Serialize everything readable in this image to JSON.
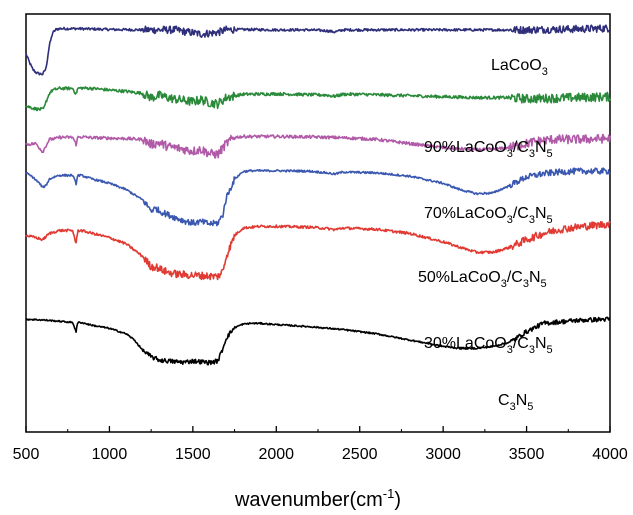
{
  "chart_data": {
    "type": "line",
    "title": "",
    "xlabel": {
      "main": "wavenumber(cm",
      "sup": "-1",
      "tail": ")"
    },
    "ylabel": "",
    "xlim": [
      500,
      4000
    ],
    "xticks": [
      500,
      1000,
      1500,
      2000,
      2500,
      3000,
      3500,
      4000
    ],
    "xtick_labels": [
      "500",
      "1000",
      "1500",
      "2000",
      "2500",
      "3000",
      "3500",
      "4000"
    ],
    "ylim": [
      0,
      1
    ],
    "grid": false,
    "legend": "none",
    "series": [
      {
        "label": [
          {
            "t": "LaCoO"
          },
          {
            "t": "3",
            "sub": true
          }
        ],
        "color": "#2e2e7a",
        "noise": 0.005,
        "x": [
          500,
          520,
          540,
          560,
          580,
          600,
          620,
          640,
          660,
          680,
          700,
          800,
          1000,
          1200,
          1300,
          1400,
          1450,
          1500,
          1550,
          1600,
          1650,
          1700,
          1800,
          2000,
          2200,
          2300,
          2350,
          2400,
          2600,
          3000,
          3200,
          3400,
          3500,
          3600,
          3800,
          4000
        ],
        "y": [
          0.905,
          0.885,
          0.868,
          0.86,
          0.857,
          0.856,
          0.87,
          0.925,
          0.955,
          0.963,
          0.965,
          0.965,
          0.963,
          0.962,
          0.962,
          0.962,
          0.958,
          0.955,
          0.952,
          0.954,
          0.956,
          0.962,
          0.963,
          0.962,
          0.962,
          0.96,
          0.957,
          0.962,
          0.962,
          0.962,
          0.962,
          0.962,
          0.962,
          0.963,
          0.964,
          0.966
        ]
      },
      {
        "label": [
          {
            "t": "90%LaCoO"
          },
          {
            "t": "3",
            "sub": true
          },
          {
            "t": "/C"
          },
          {
            "t": "3",
            "sub": true
          },
          {
            "t": "N"
          },
          {
            "t": "5",
            "sub": true
          }
        ],
        "color": "#2a8a3a",
        "noise": 0.006,
        "x": [
          500,
          540,
          560,
          580,
          600,
          610,
          620,
          640,
          660,
          680,
          700,
          780,
          800,
          810,
          830,
          900,
          1000,
          1100,
          1200,
          1250,
          1300,
          1350,
          1400,
          1500,
          1550,
          1600,
          1650,
          1700,
          1800,
          2000,
          2300,
          2350,
          2400,
          2500,
          3000,
          3200,
          3300,
          3400,
          3500,
          3600,
          3800,
          4000
        ],
        "y": [
          0.78,
          0.775,
          0.773,
          0.772,
          0.772,
          0.776,
          0.79,
          0.81,
          0.818,
          0.82,
          0.822,
          0.822,
          0.808,
          0.822,
          0.823,
          0.822,
          0.818,
          0.815,
          0.81,
          0.8,
          0.805,
          0.8,
          0.796,
          0.79,
          0.795,
          0.788,
          0.785,
          0.8,
          0.808,
          0.809,
          0.806,
          0.803,
          0.808,
          0.808,
          0.802,
          0.8,
          0.8,
          0.8,
          0.797,
          0.798,
          0.8,
          0.802
        ]
      },
      {
        "label": [
          {
            "t": "70%LaCoO"
          },
          {
            "t": "3",
            "sub": true
          },
          {
            "t": "/C"
          },
          {
            "t": "3",
            "sub": true
          },
          {
            "t": "N"
          },
          {
            "t": "5",
            "sub": true
          }
        ],
        "color": "#b05aa8",
        "noise": 0.006,
        "x": [
          500,
          560,
          600,
          620,
          640,
          680,
          700,
          780,
          800,
          810,
          830,
          900,
          1000,
          1100,
          1200,
          1250,
          1300,
          1350,
          1400,
          1450,
          1500,
          1550,
          1600,
          1650,
          1700,
          1750,
          1800,
          2000,
          2200,
          2400,
          2600,
          2800,
          3000,
          3200,
          3350,
          3450,
          3550,
          3650,
          3800,
          4000
        ],
        "y": [
          0.688,
          0.69,
          0.67,
          0.685,
          0.7,
          0.702,
          0.705,
          0.705,
          0.688,
          0.705,
          0.706,
          0.704,
          0.703,
          0.702,
          0.7,
          0.688,
          0.692,
          0.683,
          0.68,
          0.676,
          0.672,
          0.676,
          0.666,
          0.664,
          0.69,
          0.705,
          0.707,
          0.707,
          0.706,
          0.704,
          0.7,
          0.69,
          0.68,
          0.675,
          0.678,
          0.685,
          0.695,
          0.7,
          0.7,
          0.702
        ]
      },
      {
        "label": [
          {
            "t": "50%LaCoO"
          },
          {
            "t": "3",
            "sub": true
          },
          {
            "t": "/C"
          },
          {
            "t": "3",
            "sub": true
          },
          {
            "t": "N"
          },
          {
            "t": "5",
            "sub": true
          }
        ],
        "color": "#3a58b0",
        "noise": 0.004,
        "x": [
          500,
          540,
          580,
          600,
          620,
          640,
          680,
          700,
          780,
          800,
          810,
          830,
          900,
          1000,
          1100,
          1200,
          1250,
          1280,
          1300,
          1350,
          1400,
          1450,
          1500,
          1550,
          1600,
          1650,
          1680,
          1700,
          1750,
          1800,
          1850,
          1900,
          2000,
          2200,
          2300,
          2350,
          2400,
          2600,
          2800,
          3000,
          3100,
          3200,
          3300,
          3400,
          3500,
          3600,
          3700,
          3800,
          4000
        ],
        "y": [
          0.62,
          0.61,
          0.595,
          0.585,
          0.59,
          0.605,
          0.612,
          0.614,
          0.614,
          0.594,
          0.614,
          0.614,
          0.605,
          0.595,
          0.58,
          0.555,
          0.53,
          0.535,
          0.528,
          0.52,
          0.512,
          0.505,
          0.5,
          0.503,
          0.498,
          0.5,
          0.52,
          0.56,
          0.605,
          0.623,
          0.625,
          0.625,
          0.625,
          0.624,
          0.62,
          0.617,
          0.622,
          0.62,
          0.612,
          0.595,
          0.58,
          0.57,
          0.572,
          0.59,
          0.61,
          0.618,
          0.622,
          0.624,
          0.624
        ]
      },
      {
        "label": [
          {
            "t": "30%LaCoO"
          },
          {
            "t": "3",
            "sub": true
          },
          {
            "t": "/C"
          },
          {
            "t": "3",
            "sub": true
          },
          {
            "t": "N"
          },
          {
            "t": "5",
            "sub": true
          }
        ],
        "color": "#e03a32",
        "noise": 0.005,
        "x": [
          500,
          560,
          600,
          640,
          700,
          780,
          800,
          810,
          830,
          900,
          1000,
          1100,
          1200,
          1250,
          1280,
          1300,
          1350,
          1400,
          1450,
          1500,
          1550,
          1600,
          1650,
          1680,
          1700,
          1750,
          1800,
          1900,
          2000,
          2200,
          2300,
          2350,
          2400,
          2600,
          2800,
          3000,
          3100,
          3200,
          3300,
          3400,
          3500,
          3600,
          3700,
          3800,
          3900,
          4000
        ],
        "y": [
          0.47,
          0.465,
          0.46,
          0.475,
          0.482,
          0.482,
          0.45,
          0.482,
          0.482,
          0.475,
          0.465,
          0.45,
          0.42,
          0.395,
          0.395,
          0.39,
          0.382,
          0.378,
          0.376,
          0.375,
          0.374,
          0.373,
          0.372,
          0.385,
          0.42,
          0.47,
          0.488,
          0.492,
          0.492,
          0.49,
          0.487,
          0.484,
          0.488,
          0.485,
          0.475,
          0.455,
          0.442,
          0.43,
          0.43,
          0.442,
          0.46,
          0.475,
          0.485,
          0.49,
          0.494,
          0.498
        ]
      },
      {
        "label": [
          {
            "t": "C"
          },
          {
            "t": "3",
            "sub": true
          },
          {
            "t": "N"
          },
          {
            "t": "5",
            "sub": true
          }
        ],
        "color": "#000000",
        "noise": 0.003,
        "x": [
          500,
          600,
          700,
          780,
          800,
          810,
          830,
          900,
          1000,
          1100,
          1150,
          1200,
          1250,
          1300,
          1350,
          1400,
          1450,
          1500,
          1550,
          1600,
          1650,
          1680,
          1700,
          1750,
          1800,
          1850,
          1900,
          2000,
          2200,
          2400,
          2600,
          2800,
          3000,
          3100,
          3200,
          3300,
          3400,
          3500,
          3600,
          3800,
          4000
        ],
        "y": [
          0.27,
          0.268,
          0.265,
          0.262,
          0.24,
          0.262,
          0.262,
          0.255,
          0.248,
          0.235,
          0.22,
          0.195,
          0.18,
          0.172,
          0.17,
          0.168,
          0.167,
          0.17,
          0.168,
          0.166,
          0.17,
          0.2,
          0.225,
          0.25,
          0.258,
          0.26,
          0.26,
          0.257,
          0.252,
          0.245,
          0.235,
          0.22,
          0.205,
          0.2,
          0.2,
          0.205,
          0.215,
          0.24,
          0.26,
          0.267,
          0.27
        ]
      }
    ]
  }
}
